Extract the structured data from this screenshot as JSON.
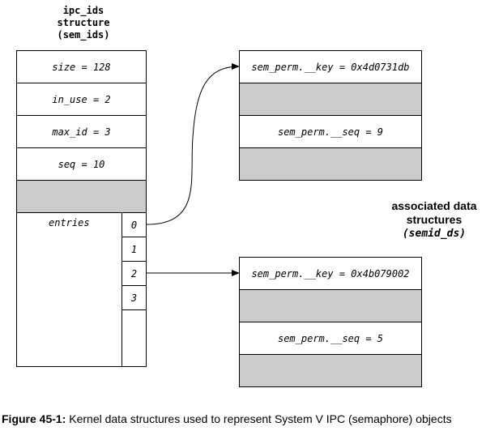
{
  "ipc_ids": {
    "title_line1": "ipc_ids",
    "title_line2": "structure",
    "title_line3": "(sem_ids)",
    "fields": {
      "size": "size = 128",
      "in_use": "in_use = 2",
      "max_id": "max_id = 3",
      "seq": "seq = 10"
    },
    "entries_label": "entries",
    "entry_indices": [
      "0",
      "1",
      "2",
      "3"
    ]
  },
  "semid_ds_a": {
    "key": "sem_perm.__key = 0x4d0731db",
    "seq": "sem_perm.__seq = 9"
  },
  "semid_ds_b": {
    "key": "sem_perm.__key = 0x4b079002",
    "seq": "sem_perm.__seq = 5"
  },
  "associated": {
    "line1": "associated data",
    "line2": "structures",
    "line3": "(semid_ds)"
  },
  "caption": {
    "label": "Figure 45-1:",
    "text": " Kernel data structures used to represent System V IPC (semaphore) objects"
  },
  "colors": {
    "shade": "#cccccc",
    "line": "#000000",
    "background": "#ffffff"
  }
}
